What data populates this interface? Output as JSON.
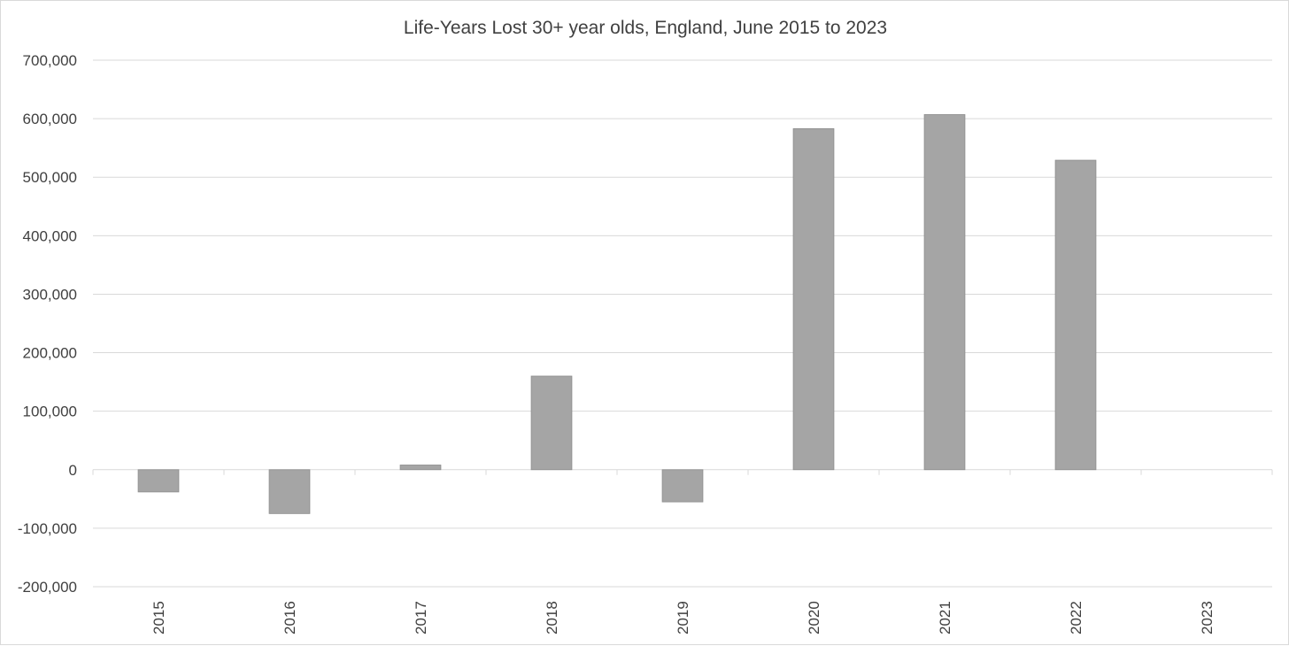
{
  "chart_data": {
    "type": "bar",
    "title": "Life-Years Lost 30+ year olds, England, June 2015 to 2023",
    "xlabel": "",
    "ylabel": "",
    "categories": [
      "2015",
      "2016",
      "2017",
      "2018",
      "2019",
      "2020",
      "2021",
      "2022",
      "2023"
    ],
    "values": [
      -38000,
      -75000,
      8000,
      160000,
      -55000,
      583000,
      607000,
      529000,
      0
    ],
    "ylim": [
      -200000,
      700000
    ],
    "yticks": [
      700000,
      600000,
      500000,
      400000,
      300000,
      200000,
      100000,
      0,
      -100000,
      -200000
    ],
    "ytick_labels": [
      "700,000",
      "600,000",
      "500,000",
      "400,000",
      "300,000",
      "200,000",
      "100,000",
      "0",
      "-100,000",
      "-200,000"
    ],
    "grid": true,
    "legend": "none",
    "colors": {
      "bar": "#a5a5a5",
      "bar_edge": "#8c8c8c",
      "grid": "#d9d9d9",
      "text": "#404040"
    }
  }
}
